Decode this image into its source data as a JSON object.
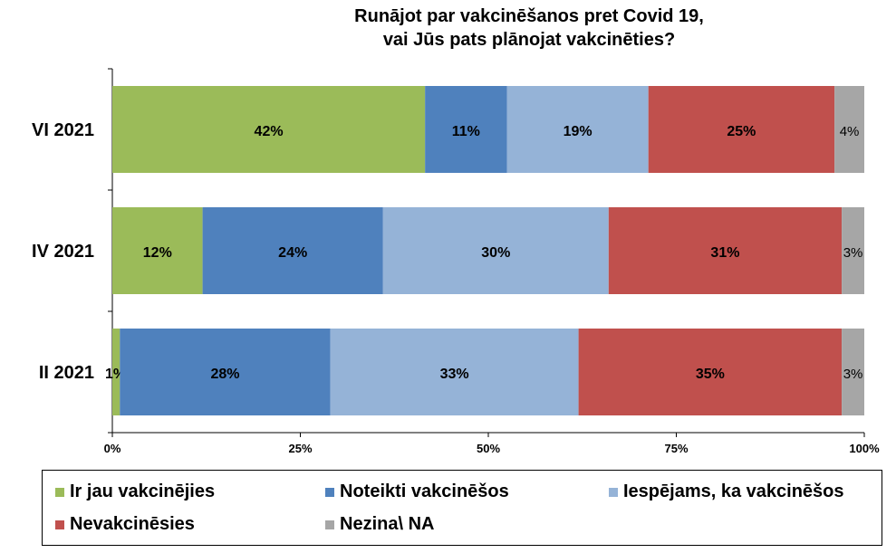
{
  "chart_data": {
    "type": "bar",
    "orientation": "horizontal",
    "stacked": "percent",
    "title": "Runājot par vakcinēšanos pret Covid 19,\nvai Jūs pats plānojat vakcinēties?",
    "categories": [
      "VI 2021",
      "IV 2021",
      "II 2021"
    ],
    "series": [
      {
        "name": "Ir jau vakcinējies",
        "color": "#9BBB59",
        "values": [
          42,
          12,
          1
        ],
        "labels": [
          "42%",
          "12%",
          "1%"
        ]
      },
      {
        "name": "Noteikti vakcinēšos",
        "color": "#4F81BD",
        "values": [
          11,
          24,
          28
        ],
        "labels": [
          "11%",
          "24%",
          "28%"
        ]
      },
      {
        "name": "Iespējams, ka vakcinēšos",
        "color": "#95B3D7",
        "values": [
          19,
          30,
          33
        ],
        "labels": [
          "19%",
          "30%",
          "33%"
        ]
      },
      {
        "name": "Nevakcinēsies",
        "color": "#C0504D",
        "values": [
          25,
          31,
          35
        ],
        "labels": [
          "25%",
          "31%",
          "35%"
        ]
      },
      {
        "name": "Nezina\\ NA",
        "color": "#A6A6A6",
        "values": [
          4,
          3,
          3
        ],
        "labels": [
          "4%",
          "3%",
          "3%"
        ]
      }
    ],
    "xlim": [
      0,
      100
    ],
    "xticks": [
      "0%",
      "25%",
      "50%",
      "75%",
      "100%"
    ],
    "grid": false,
    "legend_position": "bottom"
  }
}
